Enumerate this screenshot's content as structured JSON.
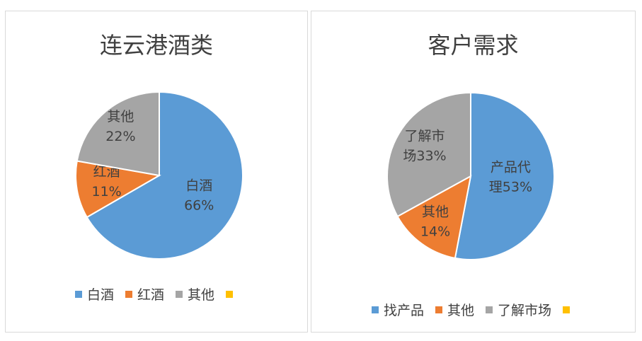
{
  "chart_data": [
    {
      "type": "pie",
      "title": "连云港酒类",
      "slices": [
        {
          "label": "白酒",
          "value": 66,
          "display": [
            "白酒",
            "66%"
          ],
          "color": "#5b9bd5"
        },
        {
          "label": "红酒",
          "value": 11,
          "display": [
            "红酒",
            "11%"
          ],
          "color": "#ed7d31"
        },
        {
          "label": "其他",
          "value": 22,
          "display": [
            "其他",
            "22%"
          ],
          "color": "#a5a5a5"
        }
      ],
      "legend": [
        {
          "label": "白酒",
          "color": "#5b9bd5"
        },
        {
          "label": "红酒",
          "color": "#ed7d31"
        },
        {
          "label": "其他",
          "color": "#a5a5a5"
        },
        {
          "label": "",
          "color": "#ffc000"
        }
      ],
      "legend_position": "bottom"
    },
    {
      "type": "pie",
      "title": "客户需求",
      "slices": [
        {
          "label": "产品代理",
          "value": 53,
          "display": [
            "产品代",
            "理53%"
          ],
          "color": "#5b9bd5"
        },
        {
          "label": "其他",
          "value": 14,
          "display": [
            "其他",
            "14%"
          ],
          "color": "#ed7d31"
        },
        {
          "label": "了解市场",
          "value": 33,
          "display": [
            "了解市",
            "场33%"
          ],
          "color": "#a5a5a5"
        }
      ],
      "legend": [
        {
          "label": "找产品",
          "color": "#5b9bd5"
        },
        {
          "label": "其他",
          "color": "#ed7d31"
        },
        {
          "label": "了解市场",
          "color": "#a5a5a5"
        },
        {
          "label": "",
          "color": "#ffc000"
        }
      ],
      "legend_position": "bottom"
    }
  ]
}
